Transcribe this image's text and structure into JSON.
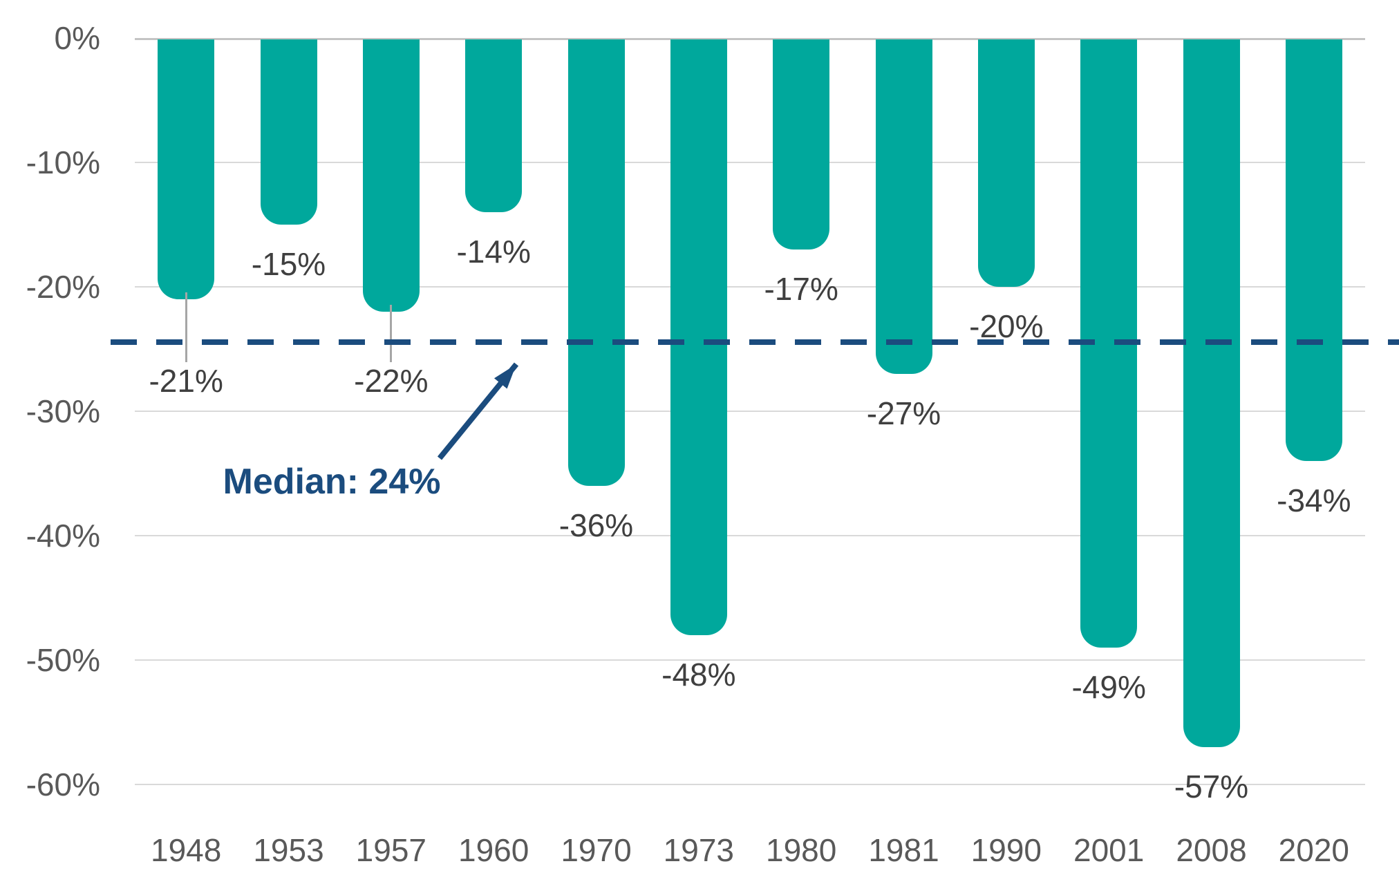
{
  "chart_data": {
    "type": "bar",
    "categories": [
      "1948",
      "1953",
      "1957",
      "1960",
      "1970",
      "1973",
      "1980",
      "1981",
      "1990",
      "2001",
      "2008",
      "2020"
    ],
    "values": [
      -21,
      -15,
      -22,
      -14,
      -36,
      -48,
      -17,
      -27,
      -20,
      -49,
      -57,
      -34
    ],
    "bar_labels": [
      "-21%",
      "-15%",
      "-22%",
      "-14%",
      "-36%",
      "-48%",
      "-17%",
      "-27%",
      "-20%",
      "-49%",
      "-57%",
      "-34%"
    ],
    "y_ticks": [
      "0%",
      "-10%",
      "-20%",
      "-30%",
      "-40%",
      "-50%",
      "-60%"
    ],
    "y_tick_values": [
      0,
      -10,
      -20,
      -30,
      -40,
      -50,
      -60
    ],
    "ylim": [
      -60,
      0
    ],
    "grid": true,
    "legend": "none",
    "annotation": {
      "label": "Median: 24%",
      "line_value": -24
    },
    "leader_line_years": [
      "1948",
      "1957"
    ],
    "colors": {
      "bar": "#00A89C",
      "median": "#1B4C7E",
      "grid": "#D9D9D9",
      "zero_line": "#C4C4C4",
      "value_label": "#3F3F3F",
      "axis_label": "#595959",
      "leader": "#A6A6A6",
      "background": "#FFFFFF"
    }
  }
}
